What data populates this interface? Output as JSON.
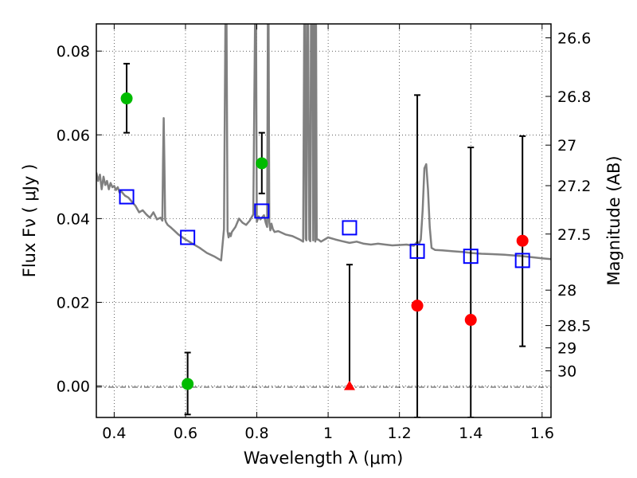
{
  "chart_data": {
    "type": "scatter",
    "xlabel": "Wavelength  λ (μm)",
    "ylabel": "Flux  Fν  ( μJy )",
    "y2label": "Magnitude (AB)",
    "xlim": [
      0.35,
      1.625
    ],
    "ylim": [
      -0.0075,
      0.0865
    ],
    "grid": true,
    "x_ticks": [
      0.4,
      0.6,
      0.8,
      1.0,
      1.2,
      1.4,
      1.6
    ],
    "x_tick_labels": [
      "0.4",
      "0.6",
      "0.8",
      "1",
      "1.2",
      "1.4",
      "1.6"
    ],
    "y_ticks": [
      0.0,
      0.02,
      0.04,
      0.06,
      0.08
    ],
    "y_tick_labels": [
      "0.00",
      "0.02",
      "0.04",
      "0.06",
      "0.08"
    ],
    "y2_ticks": [
      26.6,
      26.8,
      27.0,
      27.2,
      27.5,
      28.0,
      28.5,
      29.0,
      30.0
    ],
    "y2_tick_labels": [
      "26.6",
      "26.8",
      "27",
      "27.2",
      "27.5",
      "28",
      "28.5",
      "29",
      "30"
    ],
    "colors": {
      "green": "#00bb00",
      "red": "#ff0000",
      "blue": "#0000ff",
      "template": "#808080"
    },
    "series": [
      {
        "marker": "circle",
        "color": "#00bb00",
        "points": [
          {
            "x": 0.435,
            "y": 0.0687,
            "err_lo": 0.0605,
            "err_hi": 0.077
          },
          {
            "x": 0.606,
            "y": 0.0005,
            "err_lo": -0.0068,
            "err_hi": 0.008
          },
          {
            "x": 0.814,
            "y": 0.0532,
            "err_lo": 0.046,
            "err_hi": 0.0605
          }
        ]
      },
      {
        "marker": "circle",
        "color": "#ff0000",
        "points": [
          {
            "x": 1.25,
            "y": 0.0192,
            "err_lo": -0.0075,
            "err_hi": 0.0695
          },
          {
            "x": 1.4,
            "y": 0.0158,
            "err_lo": -0.0075,
            "err_hi": 0.057
          },
          {
            "x": 1.545,
            "y": 0.0347,
            "err_lo": 0.0095,
            "err_hi": 0.0597
          }
        ]
      },
      {
        "marker": "triangle",
        "color": "#ff0000",
        "points": [
          {
            "x": 1.06,
            "y": 0.0,
            "err_lo": 0.0,
            "err_hi": 0.029
          }
        ]
      },
      {
        "marker": "open-square",
        "color": "#0000ff",
        "points": [
          {
            "x": 0.435,
            "y": 0.0452
          },
          {
            "x": 0.606,
            "y": 0.0355
          },
          {
            "x": 0.814,
            "y": 0.0418
          },
          {
            "x": 1.06,
            "y": 0.0378
          },
          {
            "x": 1.25,
            "y": 0.0322
          },
          {
            "x": 1.4,
            "y": 0.031
          },
          {
            "x": 1.545,
            "y": 0.03
          }
        ]
      }
    ],
    "template_spectrum": {
      "color": "#808080",
      "x": [
        0.35,
        0.355,
        0.36,
        0.365,
        0.37,
        0.375,
        0.38,
        0.385,
        0.39,
        0.395,
        0.4,
        0.405,
        0.41,
        0.415,
        0.42,
        0.43,
        0.44,
        0.45,
        0.46,
        0.47,
        0.48,
        0.49,
        0.5,
        0.51,
        0.52,
        0.53,
        0.535,
        0.537,
        0.539,
        0.541,
        0.543,
        0.545,
        0.55,
        0.56,
        0.57,
        0.58,
        0.6,
        0.62,
        0.64,
        0.66,
        0.68,
        0.7,
        0.708,
        0.712,
        0.715,
        0.718,
        0.721,
        0.724,
        0.727,
        0.73,
        0.74,
        0.75,
        0.76,
        0.77,
        0.78,
        0.79,
        0.795,
        0.798,
        0.8,
        0.805,
        0.81,
        0.82,
        0.825,
        0.829,
        0.831,
        0.833,
        0.835,
        0.838,
        0.841,
        0.845,
        0.85,
        0.86,
        0.88,
        0.9,
        0.92,
        0.93,
        0.933,
        0.935,
        0.937,
        0.939,
        0.941,
        0.944,
        0.947,
        0.95,
        0.952,
        0.954,
        0.956,
        0.958,
        0.96,
        0.962,
        0.964,
        0.966,
        0.968,
        0.972,
        0.98,
        1.0,
        1.02,
        1.04,
        1.06,
        1.08,
        1.1,
        1.12,
        1.14,
        1.16,
        1.18,
        1.2,
        1.22,
        1.24,
        1.25,
        1.255,
        1.26,
        1.265,
        1.27,
        1.275,
        1.28,
        1.285,
        1.29,
        1.3,
        1.32,
        1.35,
        1.38,
        1.4,
        1.43,
        1.46,
        1.49,
        1.52,
        1.55,
        1.58,
        1.6,
        1.625
      ],
      "y": [
        0.051,
        0.049,
        0.0505,
        0.047,
        0.05,
        0.048,
        0.049,
        0.047,
        0.0485,
        0.0475,
        0.0478,
        0.0468,
        0.0475,
        0.0462,
        0.0465,
        0.0455,
        0.045,
        0.044,
        0.043,
        0.0415,
        0.042,
        0.041,
        0.0402,
        0.0415,
        0.0398,
        0.0402,
        0.0395,
        0.053,
        0.064,
        0.053,
        0.0398,
        0.0392,
        0.0385,
        0.0378,
        0.037,
        0.0362,
        0.035,
        0.034,
        0.033,
        0.0318,
        0.031,
        0.03,
        0.0375,
        0.087,
        0.087,
        0.037,
        0.0355,
        0.0365,
        0.0358,
        0.0368,
        0.038,
        0.04,
        0.039,
        0.0385,
        0.0395,
        0.041,
        0.087,
        0.087,
        0.0392,
        0.0405,
        0.0398,
        0.0408,
        0.039,
        0.038,
        0.087,
        0.087,
        0.0392,
        0.0372,
        0.0388,
        0.0375,
        0.0368,
        0.037,
        0.0362,
        0.0358,
        0.035,
        0.0345,
        0.087,
        0.087,
        0.0352,
        0.0348,
        0.087,
        0.087,
        0.035,
        0.0346,
        0.087,
        0.087,
        0.087,
        0.0348,
        0.087,
        0.087,
        0.0345,
        0.087,
        0.035,
        0.035,
        0.0345,
        0.0355,
        0.035,
        0.0346,
        0.0342,
        0.0345,
        0.034,
        0.0338,
        0.034,
        0.0338,
        0.0336,
        0.0337,
        0.0338,
        0.0335,
        0.0345,
        0.034,
        0.035,
        0.042,
        0.052,
        0.053,
        0.047,
        0.038,
        0.033,
        0.0325,
        0.0324,
        0.0322,
        0.032,
        0.0318,
        0.0316,
        0.0315,
        0.0314,
        0.0312,
        0.031,
        0.0307,
        0.0305,
        0.0303
      ]
    }
  }
}
